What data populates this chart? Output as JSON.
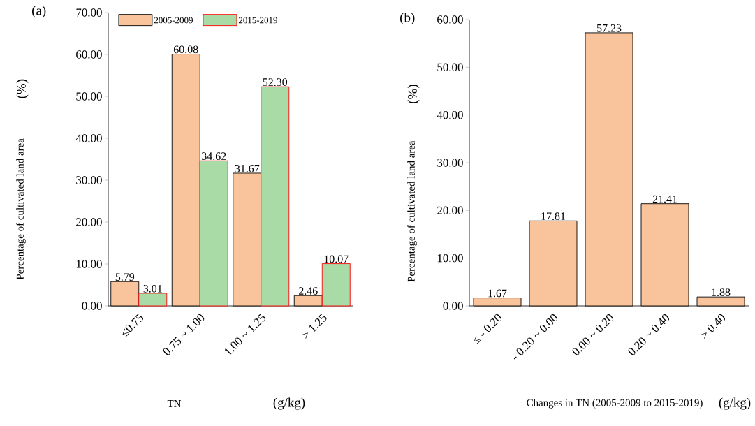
{
  "chart_data": [
    {
      "type": "bar",
      "title": "(a)",
      "xlabel": "TN",
      "ylabel": "Percentage of cultivated land area",
      "annotations": [
        "(%)",
        "(g/kg)"
      ],
      "categories": [
        "≤0.75",
        "0.75 ~ 1.00",
        "1.00 ~ 1.25",
        "> 1.25"
      ],
      "series": [
        {
          "name": "2005-2009",
          "color": "#f9c49b",
          "values": [
            5.79,
            60.08,
            31.67,
            2.46
          ],
          "value_labels": [
            "5.79",
            "60.08",
            "31.67",
            "2.46"
          ]
        },
        {
          "name": "2015-2019",
          "color": "#a8dba6",
          "values": [
            3.01,
            34.62,
            52.3,
            10.07
          ],
          "value_labels": [
            "3.01",
            "34.62",
            "52.30",
            "10.07"
          ]
        }
      ],
      "ylim": [
        0,
        70
      ],
      "yticks": [
        {
          "value": 0,
          "label": "0.00"
        },
        {
          "value": 10,
          "label": "10.00"
        },
        {
          "value": 20,
          "label": "20.00"
        },
        {
          "value": 30,
          "label": "30.00"
        },
        {
          "value": 40,
          "label": "40.00"
        },
        {
          "value": 50,
          "label": "50.00"
        },
        {
          "value": 60,
          "label": "60.00"
        },
        {
          "value": 70,
          "label": "70.00"
        }
      ],
      "legend": "top",
      "grid": false
    },
    {
      "type": "bar",
      "title": "(b)",
      "xlabel": "Changes in TN (2005-2009 to 2015-2019)",
      "ylabel": "Percentage of cultivated land area",
      "annotations": [
        "(%)",
        "(g/kg)"
      ],
      "categories": [
        "≤ - 0.20",
        "- 0.20 ~ 0.00",
        "0.00 ~ 0.20",
        "0.20 ~ 0.40",
        "> 0.40"
      ],
      "color": "#f9c49b",
      "values": [
        1.67,
        17.81,
        57.23,
        21.41,
        1.88
      ],
      "value_labels": [
        "1.67",
        "17.81",
        "57.23",
        "21.41",
        "1.88"
      ],
      "ylim": [
        0,
        60
      ],
      "yticks": [
        {
          "value": 0,
          "label": "0.00"
        },
        {
          "value": 10,
          "label": "10.00"
        },
        {
          "value": 20,
          "label": "20.00"
        },
        {
          "value": 30,
          "label": "30.00"
        },
        {
          "value": 40,
          "label": "40.00"
        },
        {
          "value": 50,
          "label": "50.00"
        },
        {
          "value": 60,
          "label": "60.00"
        }
      ],
      "grid": false
    }
  ]
}
